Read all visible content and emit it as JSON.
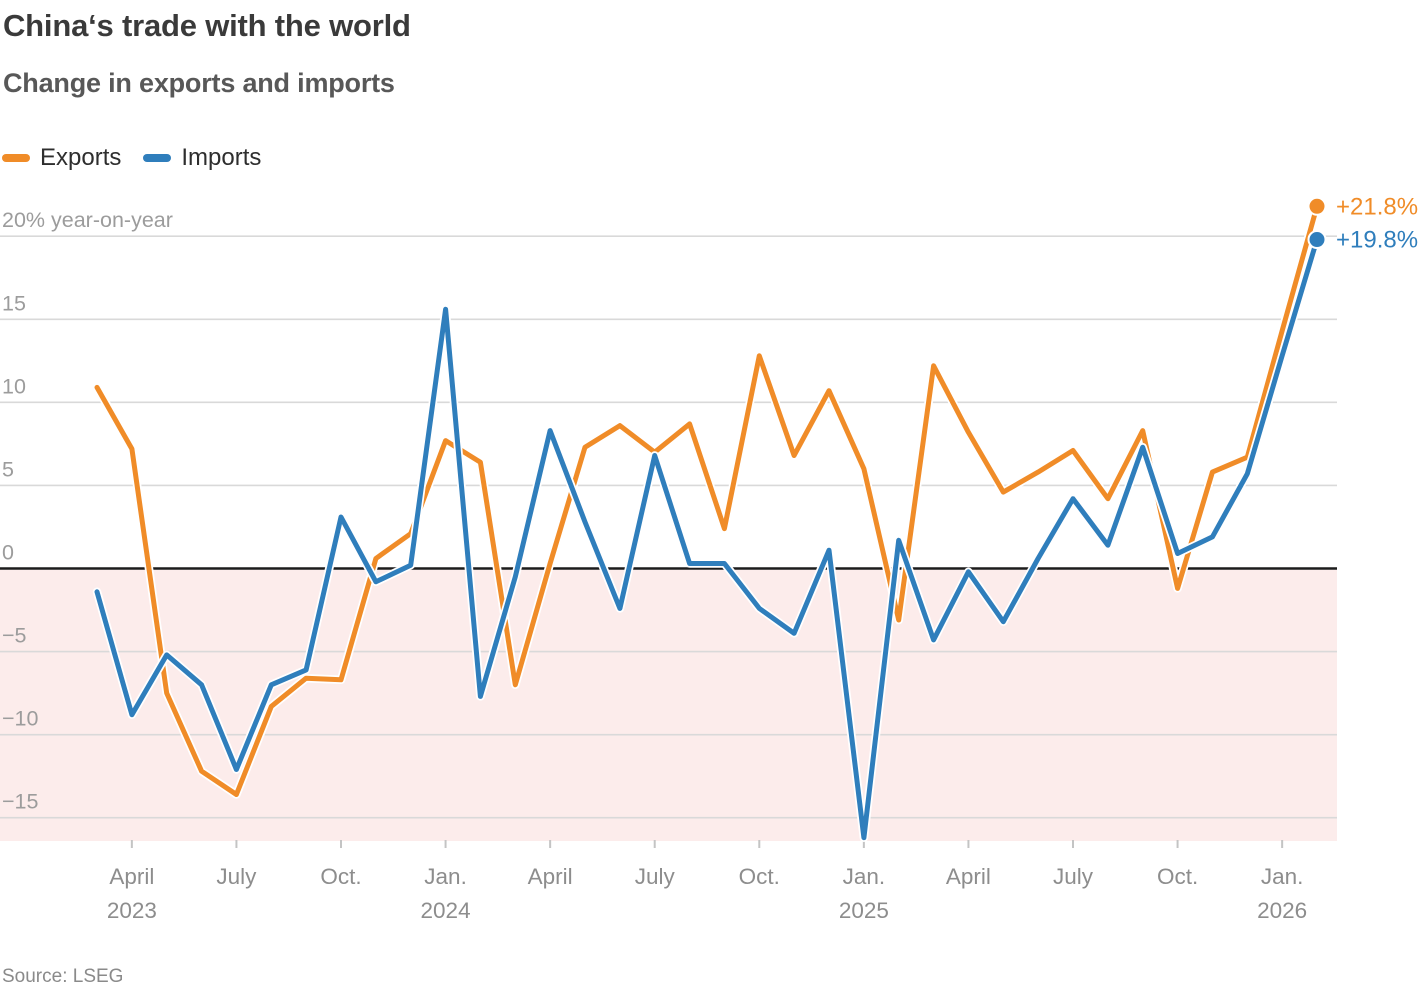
{
  "header": {
    "title": "China‘s trade with the world",
    "subtitle": "Change in exports and imports"
  },
  "legend": [
    {
      "label": "Exports",
      "color": "#f08c28"
    },
    {
      "label": "Imports",
      "color": "#2f7ebc"
    }
  ],
  "chart_data": {
    "type": "line",
    "title": "China‘s trade with the world",
    "subtitle": "Change in exports and imports",
    "ylabel_top": "20% year-on-year",
    "yticks": [
      20,
      15,
      10,
      5,
      0,
      -5,
      -10,
      -15
    ],
    "ylim": [
      -17,
      22.5
    ],
    "grid": true,
    "negative_region_color": "#fceceb",
    "x": [
      "Mar 2023",
      "Apr 2023",
      "May 2023",
      "Jun 2023",
      "Jul 2023",
      "Aug 2023",
      "Sep 2023",
      "Oct 2023",
      "Nov 2023",
      "Dec 2023",
      "Jan 2024",
      "Feb 2024",
      "Mar 2024",
      "Apr 2024",
      "May 2024",
      "Jun 2024",
      "Jul 2024",
      "Aug 2024",
      "Sep 2024",
      "Oct 2024",
      "Nov 2024",
      "Dec 2024",
      "Jan 2025",
      "Feb 2025",
      "Mar 2025",
      "Apr 2025",
      "May 2025",
      "Jun 2025",
      "Jul 2025",
      "Aug 2025",
      "Sep 2025",
      "Oct 2025",
      "Nov 2025",
      "Dec 2025",
      "Jan 2026",
      "Feb 2026"
    ],
    "x_ticks": [
      {
        "index": 1,
        "label": "April",
        "year": "2023"
      },
      {
        "index": 4,
        "label": "July"
      },
      {
        "index": 7,
        "label": "Oct."
      },
      {
        "index": 10,
        "label": "Jan.",
        "year": "2024"
      },
      {
        "index": 13,
        "label": "April"
      },
      {
        "index": 16,
        "label": "July"
      },
      {
        "index": 19,
        "label": "Oct."
      },
      {
        "index": 22,
        "label": "Jan.",
        "year": "2025"
      },
      {
        "index": 25,
        "label": "April"
      },
      {
        "index": 28,
        "label": "July"
      },
      {
        "index": 31,
        "label": "Oct."
      },
      {
        "index": 34,
        "label": "Jan.",
        "year": "2026"
      }
    ],
    "series": [
      {
        "name": "Exports",
        "color": "#f08c28",
        "end_label": "+21.8%",
        "values": [
          10.9,
          7.2,
          -7.5,
          -12.2,
          -13.6,
          -8.3,
          -6.6,
          -6.7,
          0.6,
          2.1,
          7.7,
          6.4,
          -7.0,
          0.3,
          7.3,
          8.6,
          7.0,
          8.7,
          2.4,
          12.8,
          6.8,
          10.7,
          6.0,
          -3.1,
          12.2,
          8.2,
          4.6,
          5.8,
          7.1,
          4.2,
          8.3,
          -1.2,
          5.8,
          6.7,
          14.3,
          21.8
        ]
      },
      {
        "name": "Imports",
        "color": "#2f7ebc",
        "end_label": "+19.8%",
        "values": [
          -1.4,
          -8.8,
          -5.2,
          -7.0,
          -12.1,
          -7.0,
          -6.1,
          3.1,
          -0.8,
          0.2,
          15.6,
          -7.7,
          -0.5,
          8.3,
          2.8,
          -2.4,
          6.8,
          0.3,
          0.3,
          -2.4,
          -3.9,
          1.1,
          -16.2,
          1.7,
          -4.3,
          -0.2,
          -3.2,
          0.6,
          4.2,
          1.4,
          7.3,
          0.9,
          1.9,
          5.7,
          12.8,
          19.8
        ]
      }
    ]
  },
  "footer": {
    "source": "Source: LSEG"
  }
}
